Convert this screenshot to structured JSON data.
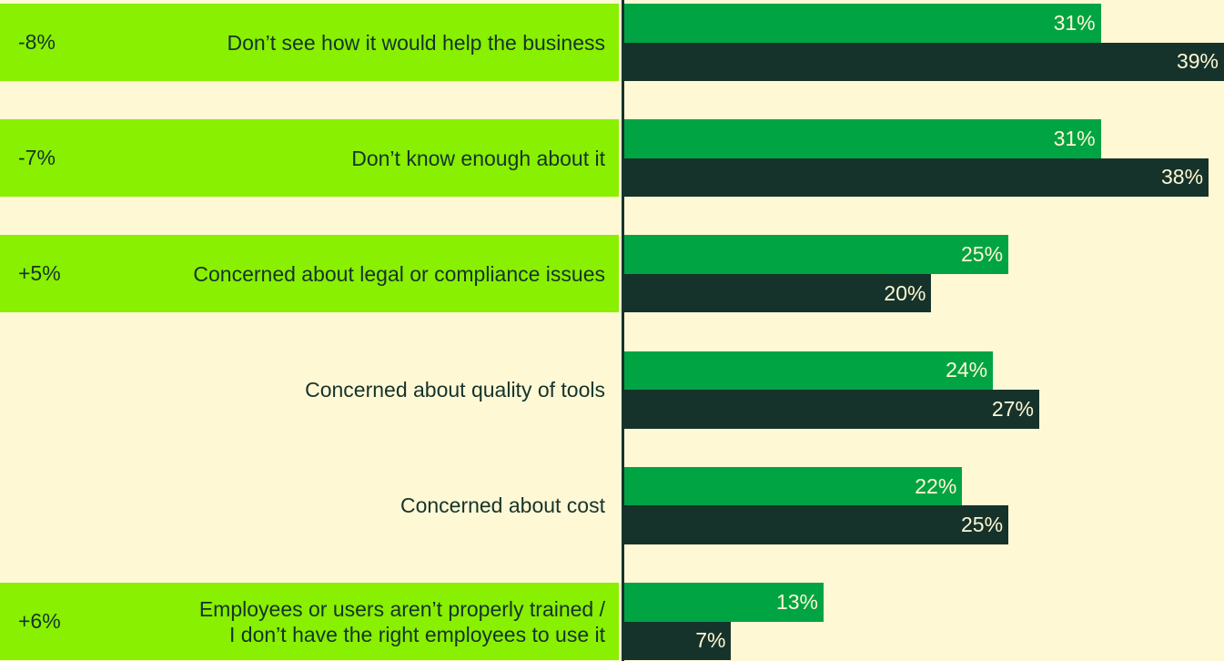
{
  "chart_data": {
    "type": "bar",
    "orientation": "horizontal",
    "categories": [
      "Don’t see how it would help the business",
      "Don’t know enough about it",
      "Concerned about legal or compliance issues",
      "Concerned about quality of tools",
      "Concerned about cost",
      "Employees or users aren’t properly trained /\nI don’t have the right employees to use it"
    ],
    "series": [
      {
        "color": "#00a443",
        "values": [
          31,
          31,
          25,
          24,
          22,
          13
        ],
        "value_labels": [
          "31%",
          "31%",
          "25%",
          "24%",
          "22%",
          "13%"
        ]
      },
      {
        "color": "#16332b",
        "values": [
          39,
          38,
          20,
          27,
          25,
          7
        ],
        "value_labels": [
          "39%",
          "38%",
          "20%",
          "27%",
          "25%",
          "7%"
        ]
      }
    ],
    "differences": [
      -8,
      -7,
      5,
      null,
      null,
      6
    ],
    "difference_labels": [
      "-8%",
      "-7%",
      "+5%",
      null,
      null,
      "+6%"
    ],
    "highlight_color": "#88f000",
    "xlim": [
      0,
      39
    ]
  }
}
